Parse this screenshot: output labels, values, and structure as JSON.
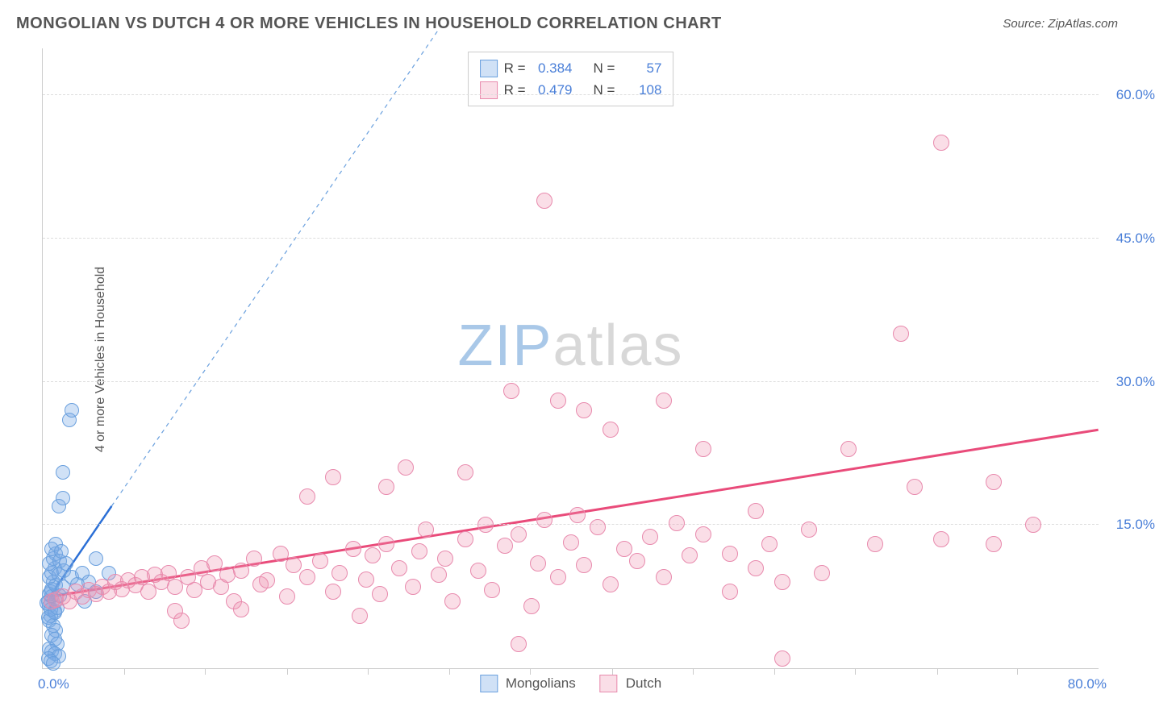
{
  "header": {
    "title": "MONGOLIAN VS DUTCH 4 OR MORE VEHICLES IN HOUSEHOLD CORRELATION CHART",
    "source_prefix": "Source: ",
    "source": "ZipAtlas.com"
  },
  "watermark": {
    "a": "ZIP",
    "b": "atlas"
  },
  "chart": {
    "type": "scatter",
    "ylabel": "4 or more Vehicles in Household",
    "xlim": [
      0,
      80
    ],
    "ylim": [
      0,
      65
    ],
    "background_color": "#ffffff",
    "grid_color": "#dddddd",
    "axis_color": "#cccccc",
    "tick_label_color": "#4a7fd8",
    "xtick_min_label": "0.0%",
    "xtick_max_label": "80.0%",
    "yticks": [
      {
        "v": 15,
        "label": "15.0%"
      },
      {
        "v": 30,
        "label": "30.0%"
      },
      {
        "v": 45,
        "label": "45.0%"
      },
      {
        "v": 60,
        "label": "60.0%"
      }
    ],
    "xticks_minor": [
      6.15,
      12.3,
      18.5,
      24.6,
      30.8,
      36.9,
      43.1,
      49.2,
      55.4,
      61.5,
      67.7,
      73.8
    ],
    "series": [
      {
        "id": "mongolians",
        "label": "Mongolians",
        "fill": "rgba(120,170,230,0.35)",
        "stroke": "#6aa0de",
        "marker_radius": 9,
        "stroke_width": 1.5,
        "stats": {
          "R": "0.384",
          "N": "57"
        },
        "trend": {
          "color": "#2b6fd6",
          "width": 2.5,
          "x1": 0.5,
          "y1": 7.5,
          "x2": 5.2,
          "y2": 17.0
        },
        "trend_ext": {
          "color": "#6aa0de",
          "width": 1.2,
          "dash": "5,5",
          "x1": 5.2,
          "y1": 17.0,
          "x2": 30,
          "y2": 67
        },
        "points": [
          [
            0.4,
            7.0
          ],
          [
            0.5,
            6.5
          ],
          [
            0.6,
            8.0
          ],
          [
            0.7,
            7.5
          ],
          [
            0.8,
            9.0
          ],
          [
            0.9,
            6.0
          ],
          [
            1.0,
            7.0
          ],
          [
            0.5,
            5.0
          ],
          [
            0.6,
            5.5
          ],
          [
            0.8,
            4.5
          ],
          [
            1.0,
            4.0
          ],
          [
            0.7,
            3.5
          ],
          [
            0.9,
            3.0
          ],
          [
            1.1,
            2.5
          ],
          [
            0.5,
            2.0
          ],
          [
            0.7,
            1.8
          ],
          [
            0.9,
            1.5
          ],
          [
            1.2,
            1.3
          ],
          [
            0.4,
            1.0
          ],
          [
            0.6,
            0.8
          ],
          [
            0.8,
            0.5
          ],
          [
            0.3,
            6.8
          ],
          [
            0.4,
            5.3
          ],
          [
            0.6,
            6.2
          ],
          [
            0.9,
            5.8
          ],
          [
            1.1,
            6.3
          ],
          [
            0.5,
            7.8
          ],
          [
            0.7,
            8.3
          ],
          [
            1.0,
            8.7
          ],
          [
            1.3,
            7.6
          ],
          [
            0.5,
            9.5
          ],
          [
            0.7,
            10.0
          ],
          [
            0.9,
            10.5
          ],
          [
            1.2,
            9.8
          ],
          [
            1.5,
            8.5
          ],
          [
            0.5,
            11.0
          ],
          [
            0.8,
            11.5
          ],
          [
            1.0,
            12.0
          ],
          [
            1.3,
            11.2
          ],
          [
            1.6,
            10.2
          ],
          [
            0.7,
            12.5
          ],
          [
            1.0,
            13.0
          ],
          [
            1.4,
            12.2
          ],
          [
            1.8,
            11.0
          ],
          [
            2.2,
            9.5
          ],
          [
            2.6,
            8.8
          ],
          [
            3.0,
            10.0
          ],
          [
            3.5,
            9.0
          ],
          [
            4.0,
            11.5
          ],
          [
            5.0,
            10.0
          ],
          [
            1.2,
            17.0
          ],
          [
            1.5,
            17.8
          ],
          [
            1.5,
            20.5
          ],
          [
            2.0,
            26.0
          ],
          [
            2.2,
            27.0
          ],
          [
            4.0,
            8.0
          ],
          [
            3.2,
            7.0
          ]
        ]
      },
      {
        "id": "dutch",
        "label": "Dutch",
        "fill": "rgba(240,145,175,0.30)",
        "stroke": "#e88aad",
        "marker_radius": 10,
        "stroke_width": 1.5,
        "stats": {
          "R": "0.479",
          "N": "108"
        },
        "trend": {
          "color": "#e94b7a",
          "width": 3,
          "x1": 0.5,
          "y1": 7.5,
          "x2": 80,
          "y2": 25.0
        },
        "points": [
          [
            0.7,
            7.0
          ],
          [
            1.0,
            7.2
          ],
          [
            1.5,
            7.5
          ],
          [
            2.0,
            7.0
          ],
          [
            2.5,
            8.0
          ],
          [
            3.0,
            7.5
          ],
          [
            3.5,
            8.2
          ],
          [
            4.0,
            7.8
          ],
          [
            4.5,
            8.5
          ],
          [
            5.0,
            8.0
          ],
          [
            5.5,
            9.0
          ],
          [
            6.0,
            8.3
          ],
          [
            6.5,
            9.2
          ],
          [
            7.0,
            8.7
          ],
          [
            7.5,
            9.5
          ],
          [
            8.0,
            8.0
          ],
          [
            8.5,
            9.8
          ],
          [
            9.0,
            9.0
          ],
          [
            9.5,
            10.0
          ],
          [
            10.0,
            8.5
          ],
          [
            10.0,
            6.0
          ],
          [
            10.5,
            5.0
          ],
          [
            11.0,
            9.5
          ],
          [
            11.5,
            8.2
          ],
          [
            12.0,
            10.5
          ],
          [
            12.5,
            9.0
          ],
          [
            13.0,
            11.0
          ],
          [
            13.5,
            8.5
          ],
          [
            14.0,
            9.8
          ],
          [
            14.5,
            7.0
          ],
          [
            15.0,
            10.2
          ],
          [
            15.0,
            6.2
          ],
          [
            16.0,
            11.5
          ],
          [
            16.5,
            8.8
          ],
          [
            17.0,
            9.2
          ],
          [
            18.0,
            12.0
          ],
          [
            18.5,
            7.5
          ],
          [
            19.0,
            10.8
          ],
          [
            20.0,
            9.5
          ],
          [
            20.0,
            18.0
          ],
          [
            21.0,
            11.2
          ],
          [
            22.0,
            8.0
          ],
          [
            22.0,
            20.0
          ],
          [
            22.5,
            10.0
          ],
          [
            23.5,
            12.5
          ],
          [
            24.0,
            5.5
          ],
          [
            24.5,
            9.3
          ],
          [
            25.0,
            11.8
          ],
          [
            25.5,
            7.8
          ],
          [
            26.0,
            13.0
          ],
          [
            26.0,
            19.0
          ],
          [
            27.0,
            10.5
          ],
          [
            27.5,
            21.0
          ],
          [
            28.0,
            8.5
          ],
          [
            28.5,
            12.2
          ],
          [
            29.0,
            14.5
          ],
          [
            30.0,
            9.8
          ],
          [
            30.5,
            11.5
          ],
          [
            31.0,
            7.0
          ],
          [
            32.0,
            13.5
          ],
          [
            32.0,
            20.5
          ],
          [
            33.0,
            10.2
          ],
          [
            33.5,
            15.0
          ],
          [
            34.0,
            8.2
          ],
          [
            35.0,
            12.8
          ],
          [
            35.5,
            29.0
          ],
          [
            36.0,
            14.0
          ],
          [
            36.0,
            2.5
          ],
          [
            37.0,
            6.5
          ],
          [
            37.5,
            11.0
          ],
          [
            38.0,
            15.5
          ],
          [
            38.0,
            49.0
          ],
          [
            39.0,
            9.5
          ],
          [
            39.0,
            28.0
          ],
          [
            40.0,
            13.2
          ],
          [
            40.5,
            16.0
          ],
          [
            41.0,
            10.8
          ],
          [
            41.0,
            27.0
          ],
          [
            42.0,
            14.8
          ],
          [
            43.0,
            8.8
          ],
          [
            43.0,
            25.0
          ],
          [
            44.0,
            12.5
          ],
          [
            45.0,
            11.2
          ],
          [
            46.0,
            13.8
          ],
          [
            47.0,
            9.5
          ],
          [
            47.0,
            28.0
          ],
          [
            48.0,
            15.2
          ],
          [
            49.0,
            11.8
          ],
          [
            50.0,
            14.0
          ],
          [
            50.0,
            23.0
          ],
          [
            52.0,
            8.0
          ],
          [
            52.0,
            12.0
          ],
          [
            54.0,
            10.5
          ],
          [
            54.0,
            16.5
          ],
          [
            55.0,
            13.0
          ],
          [
            56.0,
            1.0
          ],
          [
            56.0,
            9.0
          ],
          [
            58.0,
            14.5
          ],
          [
            59.0,
            10.0
          ],
          [
            61.0,
            23.0
          ],
          [
            63.0,
            13.0
          ],
          [
            65.0,
            35.0
          ],
          [
            66.0,
            19.0
          ],
          [
            68.0,
            13.5
          ],
          [
            68.0,
            55.0
          ],
          [
            72.0,
            19.5
          ],
          [
            72.0,
            13.0
          ],
          [
            75.0,
            15.0
          ]
        ]
      }
    ],
    "legend_top_labels": {
      "R": "R =",
      "N": "N ="
    },
    "legend_bottom": [
      {
        "ref": "mongolians"
      },
      {
        "ref": "dutch"
      }
    ]
  }
}
